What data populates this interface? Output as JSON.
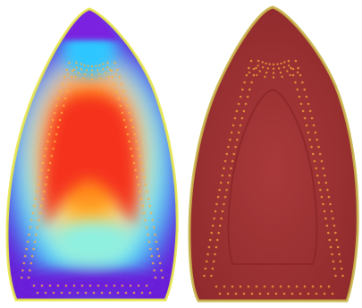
{
  "scene": {
    "background": "#ffffff",
    "panels": [
      {
        "name": "thermal-soleplate",
        "colors": {
          "outer": "#6a1fd8",
          "tip": "#7a22e0",
          "cold": "#2fc6ff",
          "cool": "#8ff0e0",
          "warm": "#ffd23a",
          "hot": "#ff8a1c",
          "hottest": "#f5301a",
          "rim": "#e8e84a"
        }
      },
      {
        "name": "photo-soleplate",
        "colors": {
          "body": "#a9393a",
          "shade": "#8f2a2c",
          "rim": "#c9b54a",
          "inner-outline": "#8a2528",
          "steam-hole": "#e59a3b"
        }
      }
    ]
  }
}
